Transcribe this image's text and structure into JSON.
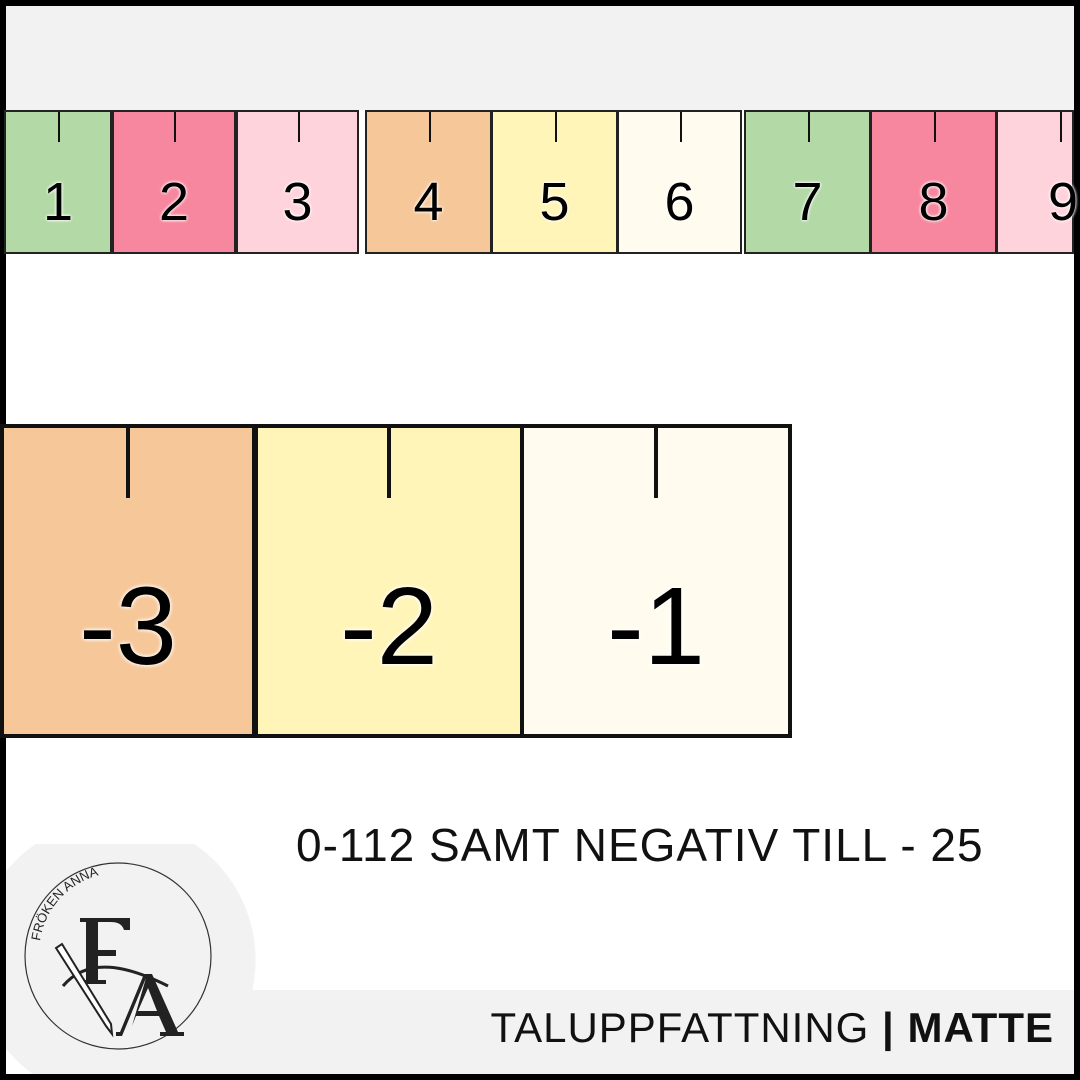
{
  "number_strip": {
    "cells": [
      {
        "label": "1",
        "color": "#b2d9a6"
      },
      {
        "label": "2",
        "color": "#f7879f"
      },
      {
        "label": "3",
        "color": "#ffd3dc"
      },
      {
        "label": "4",
        "color": "#f6c799"
      },
      {
        "label": "5",
        "color": "#fff5b8"
      },
      {
        "label": "6",
        "color": "#fffcef"
      },
      {
        "label": "7",
        "color": "#b2d9a6"
      },
      {
        "label": "8",
        "color": "#f7879f"
      },
      {
        "label": "9",
        "color": "#ffd3dc"
      }
    ]
  },
  "negative_strip": {
    "cells": [
      {
        "label": "-3",
        "color": "#f6c799"
      },
      {
        "label": "-2",
        "color": "#fff5b8"
      },
      {
        "label": "-1",
        "color": "#fffcef"
      }
    ]
  },
  "subtitle": "0-112 SAMT NEGATIV TILL - 25",
  "footer": {
    "topic": "TALUPPFATTNING",
    "separator": "|",
    "subject": "MATTE"
  },
  "logo": {
    "brand": "FRÖKEN ANNA",
    "monogram": "FA"
  }
}
